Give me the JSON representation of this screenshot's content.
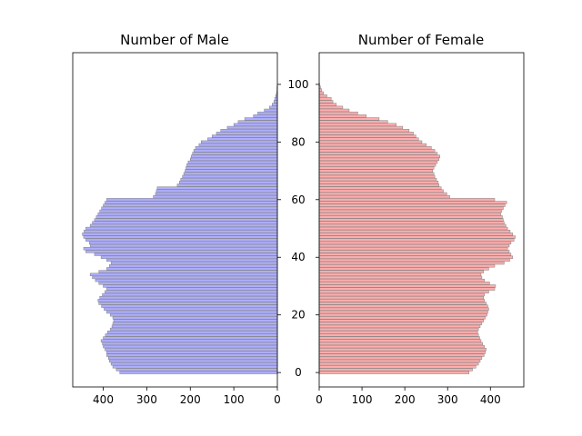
{
  "chart_data": [
    {
      "type": "bar",
      "orientation": "horizontal",
      "mirrored": true,
      "title": "Number of Male",
      "xlabel": "",
      "ylabel": "",
      "xlim": [
        0,
        470
      ],
      "ylim": [
        -5,
        111
      ],
      "xticks": [
        0,
        100,
        200,
        300,
        400
      ],
      "yticks": [
        0,
        20,
        40,
        60,
        80,
        100
      ],
      "bar_color": "#a0a0ff",
      "bar_opacity": 0.85,
      "outline_color": "#808080",
      "y_start": 0,
      "y_step": 1,
      "values": [
        362,
        370,
        378,
        382,
        386,
        388,
        392,
        392,
        396,
        400,
        402,
        405,
        400,
        395,
        390,
        384,
        380,
        378,
        376,
        378,
        384,
        392,
        398,
        404,
        410,
        412,
        408,
        402,
        396,
        392,
        400,
        410,
        418,
        425,
        430,
        410,
        392,
        386,
        382,
        392,
        405,
        420,
        440,
        445,
        430,
        432,
        440,
        445,
        448,
        444,
        440,
        430,
        425,
        420,
        416,
        412,
        408,
        404,
        400,
        396,
        392,
        285,
        280,
        278,
        276,
        230,
        225,
        222,
        218,
        215,
        212,
        210,
        208,
        205,
        200,
        198,
        195,
        192,
        188,
        180,
        175,
        160,
        150,
        140,
        130,
        115,
        100,
        90,
        75,
        55,
        45,
        30,
        18,
        12,
        8,
        6,
        4,
        2,
        1,
        1,
        0
      ]
    },
    {
      "type": "bar",
      "orientation": "horizontal",
      "title": "Number of Female",
      "xlabel": "",
      "ylabel": "",
      "xlim": [
        0,
        478
      ],
      "ylim": [
        -5,
        111
      ],
      "xticks": [
        0,
        100,
        200,
        300,
        400
      ],
      "yticks": [
        0,
        20,
        40,
        60,
        80,
        100
      ],
      "bar_color": "#ff9f9f",
      "bar_opacity": 0.85,
      "outline_color": "#808080",
      "y_start": 0,
      "y_step": 1,
      "values": [
        350,
        358,
        366,
        372,
        376,
        380,
        385,
        388,
        390,
        386,
        382,
        378,
        375,
        372,
        370,
        372,
        376,
        380,
        384,
        388,
        392,
        394,
        396,
        394,
        390,
        386,
        384,
        386,
        396,
        410,
        412,
        398,
        386,
        380,
        378,
        384,
        396,
        410,
        432,
        445,
        452,
        448,
        444,
        440,
        444,
        448,
        455,
        458,
        452,
        446,
        440,
        436,
        432,
        430,
        428,
        424,
        426,
        430,
        434,
        438,
        410,
        305,
        298,
        290,
        285,
        280,
        278,
        274,
        270,
        268,
        265,
        268,
        272,
        276,
        280,
        282,
        276,
        270,
        262,
        250,
        240,
        232,
        226,
        220,
        210,
        195,
        180,
        160,
        140,
        110,
        90,
        70,
        55,
        40,
        32,
        28,
        18,
        10,
        6,
        3,
        1
      ]
    }
  ]
}
